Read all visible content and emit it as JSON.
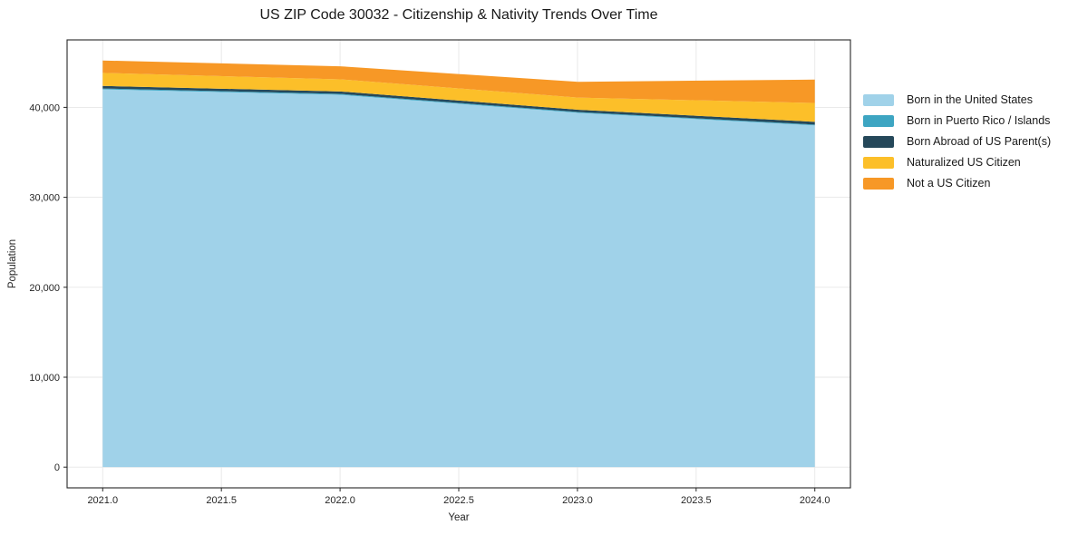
{
  "chart_data": {
    "type": "area",
    "stacked": true,
    "title": "US ZIP Code 30032 - Citizenship & Nativity Trends Over Time",
    "xlabel": "Year",
    "ylabel": "Population",
    "x": [
      2021,
      2022,
      2023,
      2024
    ],
    "series": [
      {
        "name": "Born in the United States",
        "color": "#a0d2e9",
        "values": [
          42000,
          41400,
          39400,
          38000
        ]
      },
      {
        "name": "Born in Puerto Rico / Islands",
        "color": "#3da5c2",
        "values": [
          100,
          100,
          90,
          90
        ]
      },
      {
        "name": "Born Abroad of US Parent(s)",
        "color": "#25485a",
        "values": [
          280,
          270,
          250,
          300
        ]
      },
      {
        "name": "Naturalized US Citizen",
        "color": "#fcbf29",
        "values": [
          1450,
          1350,
          1350,
          2100
        ]
      },
      {
        "name": "Not a US Citizen",
        "color": "#f79826",
        "values": [
          1380,
          1450,
          1750,
          2600
        ]
      }
    ],
    "xlim": [
      2020.85,
      2024.15
    ],
    "ylim": [
      -2300,
      47500
    ],
    "xticks": [
      2021.0,
      2021.5,
      2022.0,
      2022.5,
      2023.0,
      2023.5,
      2024.0
    ],
    "yticks": [
      0,
      10000,
      20000,
      30000,
      40000
    ],
    "grid": true,
    "legend_position": "right of plot",
    "grid_color": "#e7e7e7",
    "axis_color": "#262626",
    "text_color": "#262626"
  }
}
